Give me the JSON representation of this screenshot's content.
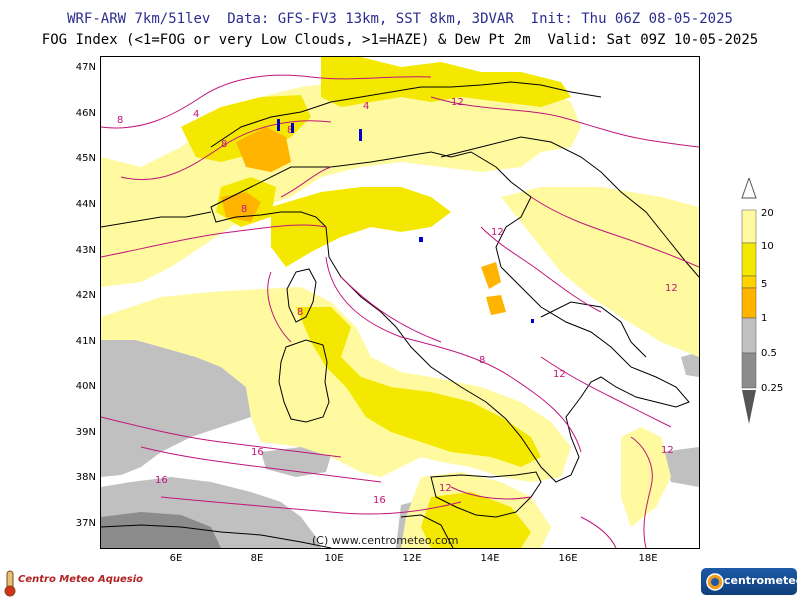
{
  "header": {
    "line1": "WRF-ARW 7km/51lev  Data: GFS-FV3 13km, SST 8km, 3DVAR  Init: Thu 06Z 08-05-2025",
    "line2": "FOG Index (<1=FOG or very Low Clouds, >1=HAZE) & Dew Pt 2m  Valid: Sat 09Z 10-05-2025"
  },
  "map": {
    "lat_labels": [
      "47N",
      "46N",
      "45N",
      "44N",
      "43N",
      "42N",
      "41N",
      "40N",
      "39N",
      "38N",
      "37N"
    ],
    "lon_labels": [
      "6E",
      "8E",
      "10E",
      "12E",
      "14E",
      "16E",
      "18E"
    ],
    "copyright": "(C) www.centrometeo.com",
    "contour_labels": [
      "8",
      "8",
      "4",
      "4",
      "12",
      "8",
      "8",
      "16",
      "16",
      "16",
      "12",
      "12",
      "12",
      "12",
      "12",
      "8",
      "8"
    ],
    "colors": {
      "fog_gray_dark": "#8c8c8c",
      "fog_gray": "#c0c0c0",
      "haze_light_yellow": "#fffaa0",
      "haze_yellow": "#f5e800",
      "haze_orange": "#ffb400",
      "dew_point_contour": "#c0157a",
      "coastline": "#000000",
      "lakes": "#0000cc"
    }
  },
  "legend": {
    "labels": [
      "20",
      "10",
      "5",
      "1",
      "0.5",
      "0.25"
    ],
    "colors": [
      "#fffaa0",
      "#f5e800",
      "#ffb400",
      "#ffffff",
      "#c0c0c0",
      "#8c8c8c"
    ]
  },
  "logos": {
    "left": "Centro Meteo Aquesio",
    "right": "centrometeo"
  }
}
